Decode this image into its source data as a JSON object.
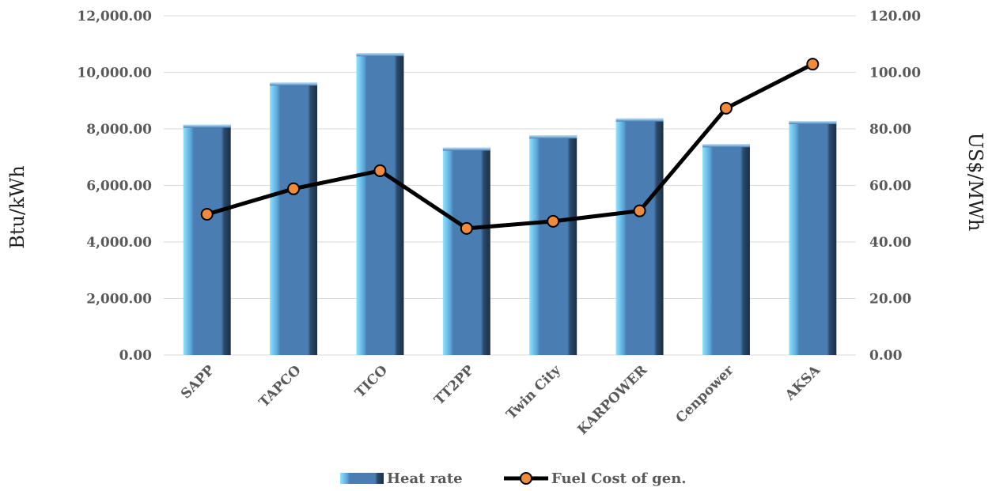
{
  "chart_data": {
    "type": "bar",
    "categories": [
      "SAPP",
      "TAPCO",
      "TICO",
      "TT2PP",
      "Twin City",
      "KARPOWER",
      "Cenpower",
      "AKSA"
    ],
    "series": [
      {
        "name": "Heat rate",
        "type": "bar",
        "axis": "left",
        "values": [
          8150,
          9640,
          10680,
          7340,
          7770,
          8370,
          7460,
          8280
        ]
      },
      {
        "name": "Fuel Cost of gen.",
        "type": "line",
        "axis": "right",
        "values": [
          49.8,
          58.8,
          65.2,
          44.8,
          47.3,
          51.0,
          87.3,
          102.9
        ]
      }
    ],
    "ylabel": "Btu/kWh",
    "y2label": "US$/MWh",
    "ylim": [
      0,
      12000
    ],
    "y2lim": [
      0,
      120
    ],
    "yticks": [
      "0.00",
      "2,000.00",
      "4,000.00",
      "6,000.00",
      "8,000.00",
      "10,000.00",
      "12,000.00"
    ],
    "y2ticks": [
      "0.00",
      "20.00",
      "40.00",
      "60.00",
      "80.00",
      "100.00",
      "120.00"
    ],
    "grid": true,
    "legend": "bottom-center",
    "colors": {
      "bar_main": "#4a7eb3",
      "bar_light": "#8fe3ff",
      "bar_dark": "#1b2f45",
      "line": "#000000",
      "marker_fill": "#f08a3c",
      "marker_stroke": "#000000"
    }
  }
}
